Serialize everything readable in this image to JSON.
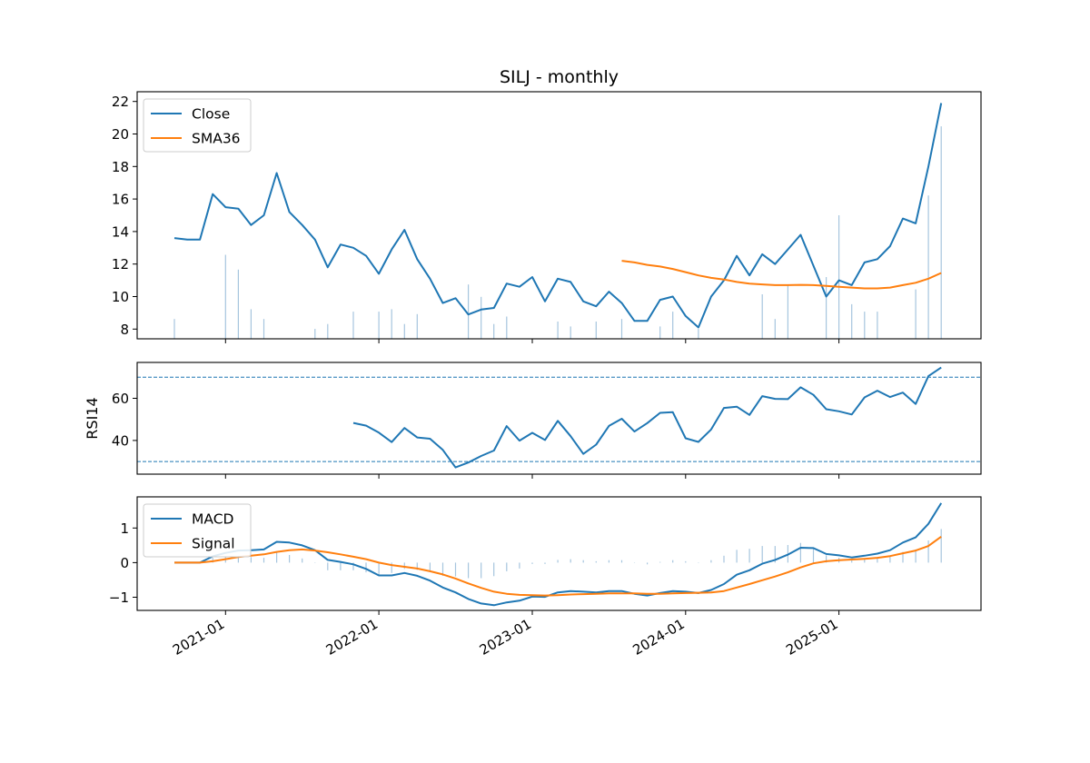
{
  "colors": {
    "close": "#1f77b4",
    "sma": "#ff7f0e",
    "macd": "#1f77b4",
    "signal": "#ff7f0e",
    "rsi": "#1f77b4",
    "guide": "#1f77b4",
    "volume": "#a6c5de"
  },
  "chart_data": {
    "type": "line",
    "title": "SILJ - monthly",
    "x_ticks": [
      "2021-01",
      "2022-01",
      "2023-01",
      "2024-01",
      "2025-01"
    ],
    "dates": [
      "2020-09",
      "2020-10",
      "2020-11",
      "2020-12",
      "2021-01",
      "2021-02",
      "2021-03",
      "2021-04",
      "2021-05",
      "2021-06",
      "2021-07",
      "2021-08",
      "2021-09",
      "2021-10",
      "2021-11",
      "2021-12",
      "2022-01",
      "2022-02",
      "2022-03",
      "2022-04",
      "2022-05",
      "2022-06",
      "2022-07",
      "2022-08",
      "2022-09",
      "2022-10",
      "2022-11",
      "2022-12",
      "2023-01",
      "2023-02",
      "2023-03",
      "2023-04",
      "2023-05",
      "2023-06",
      "2023-07",
      "2023-08",
      "2023-09",
      "2023-10",
      "2023-11",
      "2023-12",
      "2024-01",
      "2024-02",
      "2024-03",
      "2024-04",
      "2024-05",
      "2024-06",
      "2024-07",
      "2024-08",
      "2024-09",
      "2024-10",
      "2024-11",
      "2024-12",
      "2025-01",
      "2025-02",
      "2025-03",
      "2025-04",
      "2025-05",
      "2025-06",
      "2025-07",
      "2025-08",
      "2025-09",
      "2025-10"
    ],
    "panels": [
      {
        "id": "price",
        "ylabel": "",
        "ylim": [
          7.4,
          22.6
        ],
        "yticks": [
          8,
          10,
          12,
          14,
          16,
          18,
          20,
          22
        ],
        "legend": "top-left",
        "series": [
          {
            "name": "Close",
            "color_key": "close",
            "values": [
              13.6,
              13.5,
              13.5,
              16.3,
              15.5,
              15.4,
              14.4,
              15.0,
              17.6,
              15.2,
              14.4,
              13.5,
              11.8,
              13.2,
              13.0,
              12.5,
              11.4,
              12.9,
              14.1,
              12.3,
              11.1,
              9.6,
              9.9,
              8.9,
              9.2,
              9.3,
              10.8,
              10.6,
              11.2,
              9.7,
              11.1,
              10.9,
              9.7,
              9.4,
              10.3,
              9.6,
              8.5,
              8.5,
              9.8,
              10.0,
              8.8,
              8.1,
              10.0,
              11.0,
              12.5,
              11.3,
              12.6,
              12.0,
              12.9,
              13.8,
              11.9,
              10.0,
              11.0,
              10.7,
              12.1,
              12.3,
              13.1,
              14.8,
              14.5,
              18.0,
              21.9,
              null
            ]
          },
          {
            "name": "SMA36",
            "color_key": "sma",
            "values": [
              null,
              null,
              null,
              null,
              null,
              null,
              null,
              null,
              null,
              null,
              null,
              null,
              null,
              null,
              null,
              null,
              null,
              null,
              null,
              null,
              null,
              null,
              null,
              null,
              null,
              null,
              null,
              null,
              null,
              null,
              null,
              null,
              null,
              null,
              null,
              12.2,
              12.1,
              11.95,
              11.85,
              11.7,
              11.5,
              11.3,
              11.15,
              11.05,
              10.9,
              10.8,
              10.75,
              10.7,
              10.7,
              10.72,
              10.7,
              10.65,
              10.6,
              10.55,
              10.5,
              10.5,
              10.55,
              10.7,
              10.85,
              11.1,
              11.45,
              null
            ]
          }
        ],
        "volume": [
          0.08,
          0,
          0,
          0,
          0.34,
          0.28,
          0.12,
          0.08,
          0,
          0,
          0,
          0.04,
          0.06,
          0,
          0.11,
          0,
          0.11,
          0.12,
          0.06,
          0.1,
          0,
          0,
          0,
          0.22,
          0.17,
          0.06,
          0.09,
          0,
          0,
          0,
          0.07,
          0.05,
          0,
          0.07,
          0,
          0.08,
          0,
          0,
          0.05,
          0.11,
          0,
          0.04,
          0,
          0,
          0,
          0,
          0.18,
          0.08,
          0.22,
          0,
          0,
          0.25,
          0.5,
          0.14,
          0.11,
          0.11,
          0,
          0,
          0.2,
          0.58,
          0.86,
          0
        ]
      },
      {
        "id": "rsi",
        "ylabel": "RSI14",
        "ylim": [
          24,
          77
        ],
        "yticks": [
          40,
          60
        ],
        "guides": [
          30,
          70
        ],
        "series": [
          {
            "name": "RSI14",
            "color_key": "rsi",
            "values": [
              null,
              null,
              null,
              null,
              null,
              null,
              null,
              null,
              null,
              null,
              null,
              null,
              null,
              null,
              48.3,
              47.0,
              43.7,
              39.2,
              45.9,
              41.4,
              40.8,
              35.5,
              27.2,
              29.5,
              32.6,
              35.2,
              46.8,
              39.9,
              43.6,
              40.2,
              49.3,
              42.0,
              33.6,
              38.0,
              46.9,
              50.3,
              44.2,
              48.2,
              53.1,
              53.4,
              41.0,
              39.3,
              45.2,
              55.4,
              56.0,
              52.1,
              61.0,
              59.7,
              59.6,
              65.2,
              61.6,
              54.8,
              53.8,
              52.3,
              60.4,
              63.6,
              60.6,
              62.7,
              57.3,
              70.5,
              74.6,
              null
            ]
          }
        ]
      },
      {
        "id": "macd",
        "ylabel": "",
        "ylim": [
          -1.38,
          1.9
        ],
        "yticks": [
          -1,
          0,
          1
        ],
        "legend": "top-left",
        "series": [
          {
            "name": "MACD",
            "color_key": "macd",
            "values": [
              0,
              0,
              0,
              0.18,
              0.28,
              0.35,
              0.36,
              0.38,
              0.6,
              0.58,
              0.5,
              0.36,
              0.08,
              0.02,
              -0.05,
              -0.18,
              -0.37,
              -0.37,
              -0.3,
              -0.38,
              -0.52,
              -0.72,
              -0.86,
              -1.05,
              -1.18,
              -1.23,
              -1.15,
              -1.1,
              -0.98,
              -0.99,
              -0.86,
              -0.82,
              -0.84,
              -0.86,
              -0.82,
              -0.82,
              -0.9,
              -0.95,
              -0.88,
              -0.82,
              -0.84,
              -0.88,
              -0.79,
              -0.62,
              -0.35,
              -0.22,
              -0.03,
              0.08,
              0.23,
              0.43,
              0.42,
              0.25,
              0.21,
              0.15,
              0.2,
              0.26,
              0.36,
              0.58,
              0.73,
              1.12,
              1.72,
              null
            ]
          },
          {
            "name": "Signal",
            "color_key": "signal",
            "values": [
              0,
              0,
              0,
              0.04,
              0.1,
              0.16,
              0.2,
              0.24,
              0.31,
              0.36,
              0.38,
              0.35,
              0.3,
              0.24,
              0.17,
              0.1,
              0,
              -0.07,
              -0.12,
              -0.17,
              -0.25,
              -0.34,
              -0.46,
              -0.6,
              -0.73,
              -0.84,
              -0.9,
              -0.93,
              -0.94,
              -0.95,
              -0.94,
              -0.92,
              -0.91,
              -0.9,
              -0.89,
              -0.89,
              -0.89,
              -0.9,
              -0.9,
              -0.89,
              -0.88,
              -0.87,
              -0.86,
              -0.82,
              -0.72,
              -0.62,
              -0.51,
              -0.4,
              -0.28,
              -0.14,
              -0.02,
              0.04,
              0.07,
              0.09,
              0.11,
              0.14,
              0.19,
              0.27,
              0.35,
              0.48,
              0.75,
              null
            ]
          }
        ],
        "histogram": [
          0,
          0,
          0,
          0.14,
          0.18,
          0.19,
          0.16,
          0.14,
          0.29,
          0.22,
          0.12,
          0.01,
          -0.22,
          -0.22,
          -0.22,
          -0.28,
          -0.37,
          -0.3,
          -0.18,
          -0.21,
          -0.27,
          -0.38,
          -0.4,
          -0.45,
          -0.45,
          -0.39,
          -0.25,
          -0.17,
          -0.04,
          -0.04,
          0.08,
          0.1,
          0.07,
          0.04,
          0.07,
          0.07,
          -0.01,
          -0.05,
          0.02,
          0.07,
          0.04,
          -0.01,
          0.07,
          0.2,
          0.37,
          0.4,
          0.48,
          0.48,
          0.51,
          0.57,
          0.44,
          0.21,
          0.14,
          0.06,
          0.09,
          0.12,
          0.17,
          0.31,
          0.38,
          0.64,
          0.97,
          0
        ]
      }
    ]
  }
}
